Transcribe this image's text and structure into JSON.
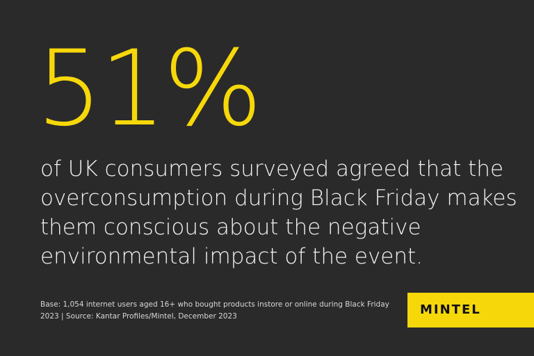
{
  "stat": "51%",
  "statement_lines": [
    "of UK consumers surveyed agreed that the",
    "overconsumption during Black Friday makes",
    "them conscious about the negative",
    "environmental impact of the event."
  ],
  "footnote_lines": [
    "Base: 1,054 internet users aged 16+ who bought products instore or online during Black Friday",
    "2023  | Source: Kantar Profiles/Mintel, December 2023"
  ],
  "brand": "MINTEL"
}
